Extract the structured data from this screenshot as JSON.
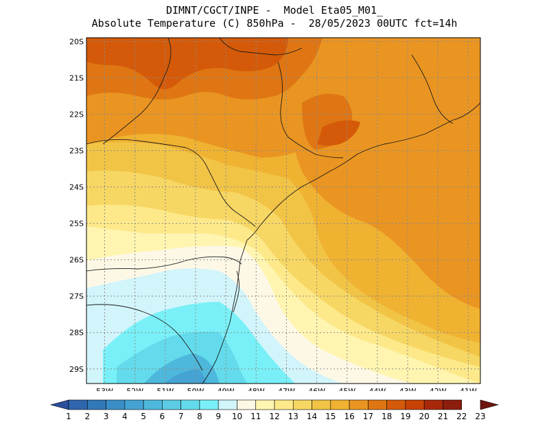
{
  "header": {
    "line1": "DIMNT/CGCT/INPE -  Model Eta05_M01_",
    "line2": "Absolute Temperature (C) 850hPa -  28/05/2023 00UTC fct=14h"
  },
  "axes": {
    "lat_labels": [
      "20S",
      "21S",
      "22S",
      "23S",
      "24S",
      "25S",
      "26S",
      "27S",
      "28S",
      "29S"
    ],
    "lon_labels": [
      "53W",
      "52W",
      "51W",
      "50W",
      "49W",
      "48W",
      "47W",
      "46W",
      "45W",
      "44W",
      "43W",
      "42W",
      "41W"
    ]
  },
  "colorbar": {
    "labels": [
      "1",
      "2",
      "3",
      "4",
      "5",
      "6",
      "7",
      "8",
      "9",
      "10",
      "11",
      "12",
      "13",
      "14",
      "15",
      "16",
      "17",
      "18",
      "19",
      "20",
      "21",
      "22",
      "23"
    ],
    "colors": [
      "#2b4f9c",
      "#2f66ae",
      "#3178b8",
      "#3a8ec7",
      "#45a3d4",
      "#4eb8dc",
      "#5ccbe3",
      "#63dbec",
      "#79f0f7",
      "#d2f4fb",
      "#fdf8e6",
      "#fff5b0",
      "#fde98a",
      "#f7d763",
      "#f2c446",
      "#f0b231",
      "#ea9522",
      "#df7613",
      "#d45a09",
      "#c74204",
      "#a8280a",
      "#8c1d0d",
      "#6e1411"
    ]
  },
  "map": {
    "domain": {
      "lon_min": -53.6,
      "lon_max": -40.6,
      "lat_min": -29.4,
      "lat_max": -19.9
    },
    "fill_levels": [
      {
        "level": 8,
        "color": "#63dbec"
      },
      {
        "level": 9,
        "color": "#79f0f7"
      },
      {
        "level": 10,
        "color": "#d2f4fb"
      },
      {
        "level": 11,
        "color": "#fdf8e6"
      },
      {
        "level": 12,
        "color": "#fff5b0"
      },
      {
        "level": 13,
        "color": "#fde98a"
      },
      {
        "level": 14,
        "color": "#f7d763"
      },
      {
        "level": 15,
        "color": "#f2c446"
      },
      {
        "level": 16,
        "color": "#f0b231"
      },
      {
        "level": 17,
        "color": "#ea9522"
      },
      {
        "level": 18,
        "color": "#df7613"
      },
      {
        "level": 19,
        "color": "#d45a09"
      },
      {
        "level": 20,
        "color": "#c74204"
      }
    ]
  }
}
